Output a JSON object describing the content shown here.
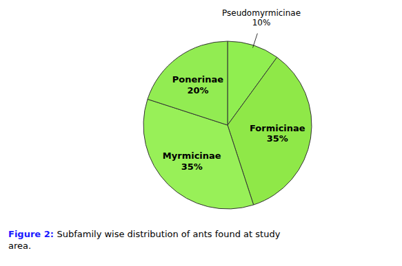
{
  "chart_data": {
    "type": "pie",
    "title": "Figure 2:",
    "subtitle": "Subfamily wise distribution of ants found at study\narea.",
    "categories": [
      "Pseudomyrmicinae",
      "Formicinae",
      "Myrmicinae",
      "Ponerinae"
    ],
    "values": [
      10,
      35,
      35,
      20
    ],
    "value_labels": [
      "10%",
      "35%",
      "35%",
      "20%"
    ],
    "colors": [
      "#90EE50",
      "#8FE848",
      "#98F058",
      "#92EC52"
    ],
    "data_labels": true
  }
}
